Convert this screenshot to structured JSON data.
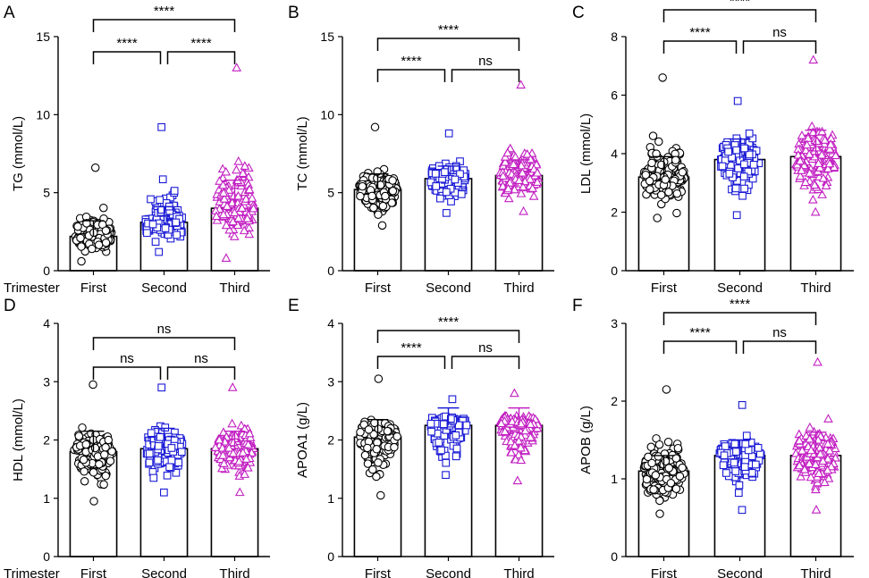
{
  "figure": {
    "trimester_label": "Trimester"
  },
  "colors": {
    "first": "#000000",
    "second": "#1a1ad6",
    "third": "#c21fc2"
  },
  "chart_data": [
    {
      "type": "bar",
      "panel": "A",
      "ylabel": "TG (mmol/L)",
      "ylim": [
        0,
        15
      ],
      "yticks": [
        0,
        5,
        10,
        15
      ],
      "categories": [
        "First",
        "Second",
        "Third"
      ],
      "means": [
        2.2,
        3.1,
        4.0
      ],
      "sd_upper": [
        3.2,
        4.1,
        5.8
      ],
      "ranges": [
        [
          0.6,
          6.6
        ],
        [
          1.2,
          9.2
        ],
        [
          0.8,
          13.0
        ]
      ],
      "comparisons": [
        {
          "from": 0,
          "to": 1,
          "label": "****"
        },
        {
          "from": 1,
          "to": 2,
          "label": "****"
        },
        {
          "from": 0,
          "to": 2,
          "label": "****"
        }
      ],
      "show_trimester": true
    },
    {
      "type": "bar",
      "panel": "B",
      "ylabel": "TC (mmol/L)",
      "ylim": [
        0,
        15
      ],
      "yticks": [
        0,
        5,
        10,
        15
      ],
      "categories": [
        "First",
        "Second",
        "Third"
      ],
      "means": [
        5.2,
        5.9,
        6.1
      ],
      "sd_upper": [
        6.2,
        6.7,
        7.1
      ],
      "ranges": [
        [
          2.9,
          9.2
        ],
        [
          3.7,
          8.8
        ],
        [
          3.8,
          11.9
        ]
      ],
      "comparisons": [
        {
          "from": 0,
          "to": 1,
          "label": "****"
        },
        {
          "from": 1,
          "to": 2,
          "label": "ns"
        },
        {
          "from": 0,
          "to": 2,
          "label": "****"
        }
      ],
      "show_trimester": false
    },
    {
      "type": "bar",
      "panel": "C",
      "ylabel": "LDL (mmol/L)",
      "ylim": [
        0,
        8
      ],
      "yticks": [
        0,
        2,
        4,
        6,
        8
      ],
      "categories": [
        "First",
        "Second",
        "Third"
      ],
      "means": [
        3.2,
        3.8,
        3.9
      ],
      "sd_upper": [
        3.9,
        4.5,
        4.8
      ],
      "ranges": [
        [
          1.8,
          6.6
        ],
        [
          1.9,
          5.8
        ],
        [
          2.0,
          7.2
        ]
      ],
      "comparisons": [
        {
          "from": 0,
          "to": 1,
          "label": "****"
        },
        {
          "from": 1,
          "to": 2,
          "label": "ns"
        },
        {
          "from": 0,
          "to": 2,
          "label": "****"
        }
      ],
      "show_trimester": false
    },
    {
      "type": "bar",
      "panel": "D",
      "ylabel": "HDL (mmol/L)",
      "ylim": [
        0,
        4
      ],
      "yticks": [
        0,
        1,
        2,
        3,
        4
      ],
      "categories": [
        "First",
        "Second",
        "Third"
      ],
      "means": [
        1.8,
        1.85,
        1.85
      ],
      "sd_upper": [
        2.15,
        2.2,
        2.15
      ],
      "ranges": [
        [
          0.95,
          2.95
        ],
        [
          1.1,
          2.9
        ],
        [
          1.1,
          2.9
        ]
      ],
      "comparisons": [
        {
          "from": 0,
          "to": 1,
          "label": "ns"
        },
        {
          "from": 1,
          "to": 2,
          "label": "ns"
        },
        {
          "from": 0,
          "to": 2,
          "label": "ns"
        }
      ],
      "show_trimester": true
    },
    {
      "type": "bar",
      "panel": "E",
      "ylabel": "APOA1 (g/L)",
      "ylim": [
        0,
        4
      ],
      "yticks": [
        0,
        1,
        2,
        3,
        4
      ],
      "categories": [
        "First",
        "Second",
        "Third"
      ],
      "means": [
        2.05,
        2.25,
        2.25
      ],
      "sd_upper": [
        2.35,
        2.55,
        2.55
      ],
      "ranges": [
        [
          1.05,
          3.05
        ],
        [
          1.4,
          2.7
        ],
        [
          1.3,
          2.8
        ]
      ],
      "comparisons": [
        {
          "from": 0,
          "to": 1,
          "label": "****"
        },
        {
          "from": 1,
          "to": 2,
          "label": "ns"
        },
        {
          "from": 0,
          "to": 2,
          "label": "****"
        }
      ],
      "show_trimester": false
    },
    {
      "type": "bar",
      "panel": "F",
      "ylabel": "APOB (g/L)",
      "ylim": [
        0,
        3
      ],
      "yticks": [
        0,
        1,
        2,
        3
      ],
      "categories": [
        "First",
        "Second",
        "Third"
      ],
      "means": [
        1.1,
        1.3,
        1.3
      ],
      "sd_upper": [
        1.3,
        1.5,
        1.6
      ],
      "ranges": [
        [
          0.55,
          2.15
        ],
        [
          0.6,
          1.95
        ],
        [
          0.6,
          2.5
        ]
      ],
      "comparisons": [
        {
          "from": 0,
          "to": 1,
          "label": "****"
        },
        {
          "from": 1,
          "to": 2,
          "label": "ns"
        },
        {
          "from": 0,
          "to": 2,
          "label": "****"
        }
      ],
      "show_trimester": false
    }
  ]
}
